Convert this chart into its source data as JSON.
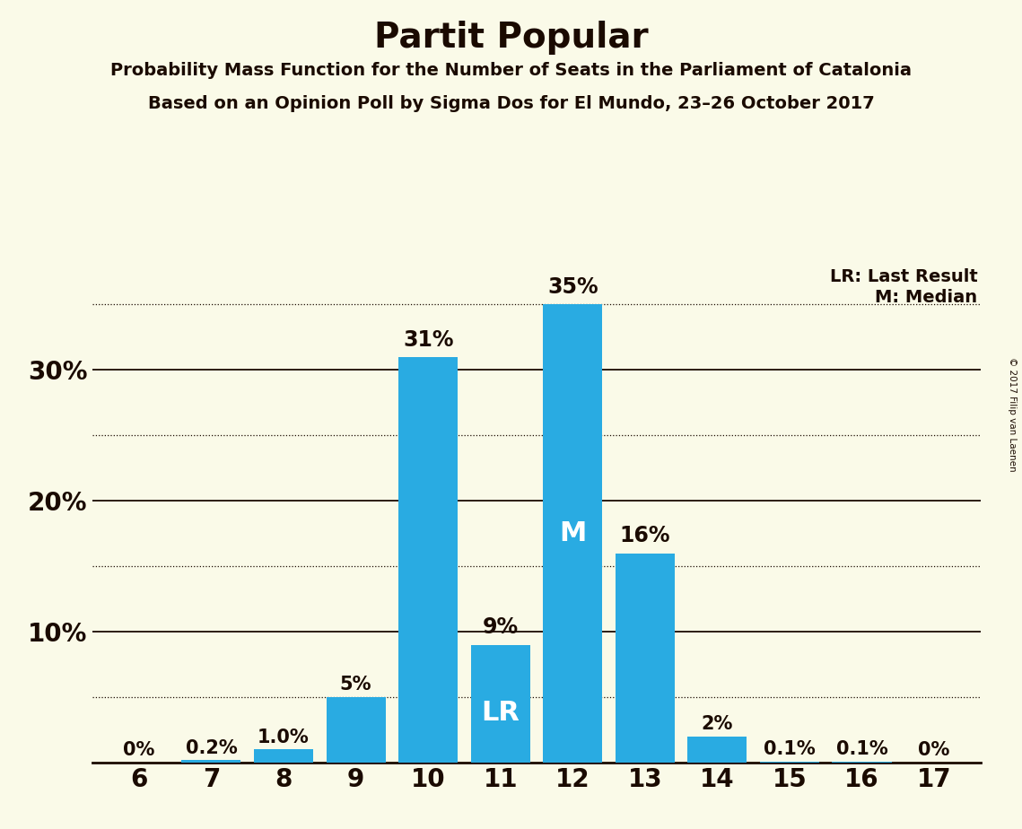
{
  "title": "Partit Popular",
  "subtitle1": "Probability Mass Function for the Number of Seats in the Parliament of Catalonia",
  "subtitle2": "Based on an Opinion Poll by Sigma Dos for El Mundo, 23–26 October 2017",
  "copyright": "© 2017 Filip van Laenen",
  "seats": [
    6,
    7,
    8,
    9,
    10,
    11,
    12,
    13,
    14,
    15,
    16,
    17
  ],
  "probabilities": [
    0.0,
    0.2,
    1.0,
    5.0,
    31.0,
    9.0,
    35.0,
    16.0,
    2.0,
    0.1,
    0.1,
    0.0
  ],
  "bar_color": "#29ABE2",
  "background_color": "#FAFAE8",
  "text_color": "#1a0a00",
  "label_color_inside": "#FFFFFF",
  "label_color_outside": "#1a0a00",
  "last_result_seat": 11,
  "median_seat": 12,
  "ytick_labels": [
    10,
    20,
    30
  ],
  "solid_lines": [
    10,
    20,
    30
  ],
  "dotted_lines": [
    5,
    15,
    25,
    35
  ],
  "ylim": [
    0,
    38
  ],
  "xlim": [
    5.35,
    17.65
  ],
  "legend_lr": "LR: Last Result",
  "legend_m": "M: Median"
}
